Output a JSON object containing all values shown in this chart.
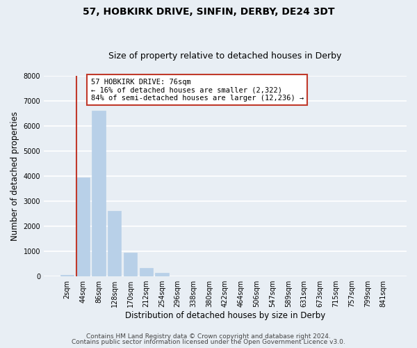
{
  "title": "57, HOBKIRK DRIVE, SINFIN, DERBY, DE24 3DT",
  "subtitle": "Size of property relative to detached houses in Derby",
  "xlabel": "Distribution of detached houses by size in Derby",
  "ylabel": "Number of detached properties",
  "bar_labels": [
    "2sqm",
    "44sqm",
    "86sqm",
    "128sqm",
    "170sqm",
    "212sqm",
    "254sqm",
    "296sqm",
    "338sqm",
    "380sqm",
    "422sqm",
    "464sqm",
    "506sqm",
    "547sqm",
    "589sqm",
    "631sqm",
    "673sqm",
    "715sqm",
    "757sqm",
    "799sqm",
    "841sqm"
  ],
  "bar_values": [
    50,
    3950,
    6600,
    2600,
    960,
    330,
    130,
    0,
    0,
    0,
    0,
    0,
    0,
    0,
    0,
    0,
    0,
    0,
    0,
    0,
    0
  ],
  "bar_color": "#b8d0e8",
  "bar_edge_color": "#b8d0e8",
  "vline_color": "#c0392b",
  "annotation_title": "57 HOBKIRK DRIVE: 76sqm",
  "annotation_line1": "← 16% of detached houses are smaller (2,322)",
  "annotation_line2": "84% of semi-detached houses are larger (12,236) →",
  "annotation_box_color": "#ffffff",
  "annotation_box_edge": "#c0392b",
  "ylim": [
    0,
    8000
  ],
  "yticks": [
    0,
    1000,
    2000,
    3000,
    4000,
    5000,
    6000,
    7000,
    8000
  ],
  "footer1": "Contains HM Land Registry data © Crown copyright and database right 2024.",
  "footer2": "Contains public sector information licensed under the Open Government Licence v3.0.",
  "bg_color": "#e8eef4",
  "plot_bg_color": "#e8eef4",
  "grid_color": "#ffffff",
  "title_fontsize": 10,
  "subtitle_fontsize": 9,
  "axis_label_fontsize": 8.5,
  "tick_fontsize": 7,
  "footer_fontsize": 6.5
}
